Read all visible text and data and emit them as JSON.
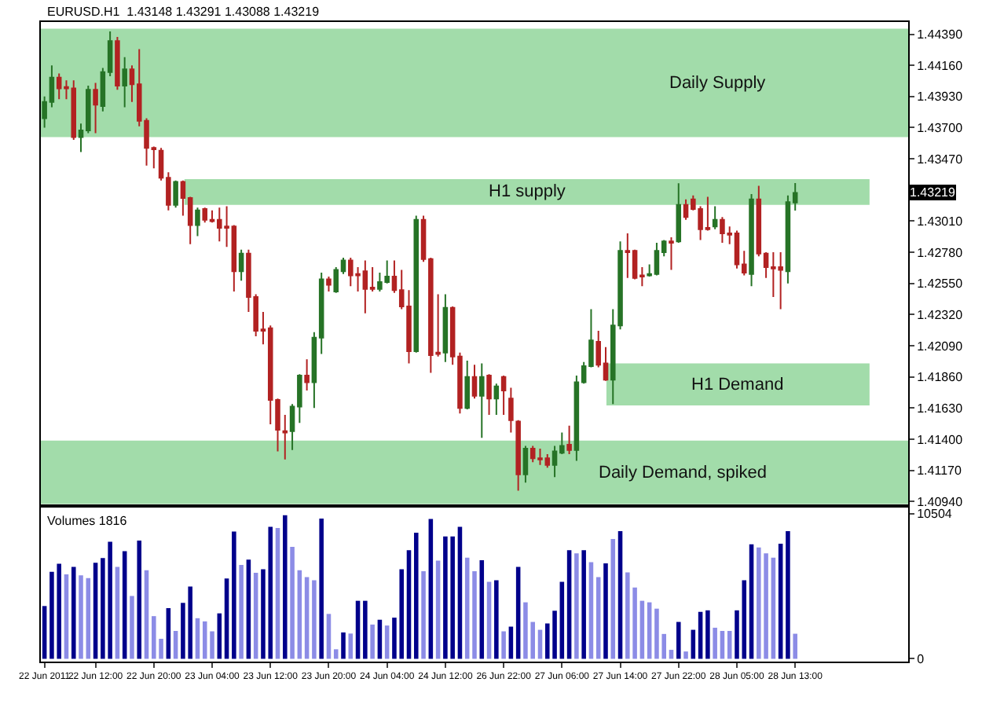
{
  "chart_data": [
    {
      "type": "candlestick",
      "title": "EURUSD.H1  1.43148 1.43291 1.43088 1.43219",
      "categories": [
        null,
        null,
        null,
        null,
        null,
        null,
        null,
        null,
        null,
        null,
        null,
        null,
        null,
        null,
        null,
        null,
        null,
        null,
        null,
        null,
        null,
        null,
        null,
        null,
        null,
        null,
        null,
        null,
        null,
        null,
        null,
        null,
        null,
        null,
        null,
        null,
        null,
        null,
        null,
        null,
        null,
        null,
        null,
        null,
        null,
        null,
        null,
        null,
        null,
        null,
        null,
        null,
        null,
        null,
        null,
        null,
        null,
        null,
        null,
        null,
        null,
        null,
        null,
        null,
        null,
        null,
        null,
        null,
        null,
        null,
        null,
        null,
        null,
        null,
        null,
        null,
        null,
        null,
        null,
        null,
        null,
        null,
        null,
        null,
        null,
        null,
        null,
        null,
        null,
        null,
        null,
        null,
        null,
        null,
        null,
        null,
        null,
        null,
        null,
        null,
        null,
        null,
        null,
        null,
        null,
        null,
        null,
        null,
        null,
        null,
        null,
        null,
        null,
        null,
        null,
        null,
        null,
        null,
        null
      ],
      "ohlc": [
        [
          1.4377,
          1.4393,
          1.437,
          1.4389
        ],
        [
          1.4389,
          1.4416,
          1.4385,
          1.4407
        ],
        [
          1.4407,
          1.441,
          1.4391,
          1.4399
        ],
        [
          1.44,
          1.4405,
          1.4391,
          1.4399
        ],
        [
          1.4399,
          1.4405,
          1.4361,
          1.4363
        ],
        [
          1.4363,
          1.4373,
          1.4352,
          1.4368
        ],
        [
          1.4368,
          1.4401,
          1.4366,
          1.4398
        ],
        [
          1.4398,
          1.4403,
          1.4366,
          1.4387
        ],
        [
          1.4386,
          1.4414,
          1.4382,
          1.4411
        ],
        [
          1.4411,
          1.4441,
          1.4408,
          1.4434
        ],
        [
          1.4434,
          1.4437,
          1.4398,
          1.4401
        ],
        [
          1.4401,
          1.4422,
          1.4385,
          1.4413
        ],
        [
          1.4413,
          1.4416,
          1.4389,
          1.4402
        ],
        [
          1.4402,
          1.4428,
          1.4371,
          1.4375
        ],
        [
          1.4375,
          1.4377,
          1.4342,
          1.4355
        ],
        [
          1.4355,
          1.4356,
          1.434,
          1.4354
        ],
        [
          1.4353,
          1.4355,
          1.4331,
          1.4333
        ],
        [
          1.4333,
          1.4337,
          1.4309,
          1.4313
        ],
        [
          1.4313,
          1.4331,
          1.4311,
          1.433
        ],
        [
          1.433,
          1.4331,
          1.4305,
          1.4318
        ],
        [
          1.4318,
          1.4319,
          1.4284,
          1.4298
        ],
        [
          1.4298,
          1.4311,
          1.429,
          1.4309
        ],
        [
          1.431,
          1.4311,
          1.43,
          1.4302
        ],
        [
          1.4302,
          1.4309,
          1.43,
          1.4301
        ],
        [
          1.4302,
          1.4311,
          1.4286,
          1.4296
        ],
        [
          1.4297,
          1.4312,
          1.4282,
          1.4296
        ],
        [
          1.4297,
          1.4298,
          1.4249,
          1.4264
        ],
        [
          1.4264,
          1.428,
          1.4257,
          1.4277
        ],
        [
          1.4277,
          1.428,
          1.4234,
          1.4245
        ],
        [
          1.4245,
          1.4247,
          1.4216,
          1.422
        ],
        [
          1.4221,
          1.4234,
          1.421,
          1.422
        ],
        [
          1.4222,
          1.4224,
          1.4151,
          1.4169
        ],
        [
          1.4169,
          1.417,
          1.4131,
          1.4147
        ],
        [
          1.4146,
          1.4158,
          1.4125,
          1.4145
        ],
        [
          1.4146,
          1.4166,
          1.4132,
          1.4164
        ],
        [
          1.4164,
          1.4188,
          1.4152,
          1.4187
        ],
        [
          1.4187,
          1.4199,
          1.4176,
          1.4182
        ],
        [
          1.4182,
          1.4219,
          1.4163,
          1.4215
        ],
        [
          1.4215,
          1.4263,
          1.4203,
          1.4258
        ],
        [
          1.4258,
          1.426,
          1.4249,
          1.4254
        ],
        [
          1.4249,
          1.4267,
          1.4248,
          1.4265
        ],
        [
          1.4264,
          1.4274,
          1.4262,
          1.4272
        ],
        [
          1.4272,
          1.4274,
          1.4253,
          1.4261
        ],
        [
          1.4262,
          1.4267,
          1.4249,
          1.4261
        ],
        [
          1.4264,
          1.4272,
          1.4233,
          1.4251
        ],
        [
          1.4252,
          1.4267,
          1.4249,
          1.4251
        ],
        [
          1.4251,
          1.4263,
          1.4249,
          1.4256
        ],
        [
          1.4256,
          1.4272,
          1.4255,
          1.426
        ],
        [
          1.426,
          1.4272,
          1.4248,
          1.425
        ],
        [
          1.425,
          1.4265,
          1.4236,
          1.4238
        ],
        [
          1.4238,
          1.425,
          1.4196,
          1.4205
        ],
        [
          1.4205,
          1.4305,
          1.4204,
          1.4302
        ],
        [
          1.4302,
          1.4305,
          1.4271,
          1.4273
        ],
        [
          1.4273,
          1.4274,
          1.4189,
          1.4202
        ],
        [
          1.4204,
          1.4247,
          1.4201,
          1.4203
        ],
        [
          1.4204,
          1.4247,
          1.4197,
          1.4237
        ],
        [
          1.4237,
          1.4238,
          1.4195,
          1.4201
        ],
        [
          1.4201,
          1.4204,
          1.4159,
          1.4163
        ],
        [
          1.4163,
          1.4198,
          1.4162,
          1.4186
        ],
        [
          1.4186,
          1.4195,
          1.417,
          1.4172
        ],
        [
          1.4172,
          1.4196,
          1.4141,
          1.4186
        ],
        [
          1.4187,
          1.4188,
          1.4158,
          1.417
        ],
        [
          1.417,
          1.4181,
          1.4158,
          1.4179
        ],
        [
          1.4186,
          1.4187,
          1.4158,
          1.4176
        ],
        [
          1.417,
          1.4178,
          1.4145,
          1.4154
        ],
        [
          1.4153,
          1.4154,
          1.4102,
          1.4114
        ],
        [
          1.4114,
          1.4135,
          1.4108,
          1.4133
        ],
        [
          1.4133,
          1.4135,
          1.4123,
          1.4126
        ],
        [
          1.4126,
          1.4133,
          1.4121,
          1.4125
        ],
        [
          1.4126,
          1.4129,
          1.4119,
          1.4121
        ],
        [
          1.4121,
          1.4135,
          1.4112,
          1.4131
        ],
        [
          1.413,
          1.4145,
          1.4129,
          1.4135
        ],
        [
          1.4136,
          1.415,
          1.4129,
          1.4132
        ],
        [
          1.4132,
          1.4187,
          1.4124,
          1.4182
        ],
        [
          1.4182,
          1.4197,
          1.4181,
          1.4194
        ],
        [
          1.4194,
          1.4236,
          1.4193,
          1.4213
        ],
        [
          1.4212,
          1.422,
          1.4193,
          1.4195
        ],
        [
          1.4196,
          1.4208,
          1.4183,
          1.4184
        ],
        [
          1.4184,
          1.4236,
          1.4166,
          1.4224
        ],
        [
          1.4224,
          1.4286,
          1.4221,
          1.4279
        ],
        [
          1.4279,
          1.4292,
          1.4259,
          1.4278
        ],
        [
          1.4279,
          1.428,
          1.4258,
          1.4259
        ],
        [
          1.4261,
          1.4267,
          1.4253,
          1.426
        ],
        [
          1.4261,
          1.4269,
          1.426,
          1.4262
        ],
        [
          1.4262,
          1.4285,
          1.4261,
          1.4279
        ],
        [
          1.4278,
          1.4287,
          1.4275,
          1.4286
        ],
        [
          1.4286,
          1.4289,
          1.4265,
          1.4285
        ],
        [
          1.4286,
          1.4329,
          1.4285,
          1.4313
        ],
        [
          1.4313,
          1.4317,
          1.4302,
          1.4304
        ],
        [
          1.4317,
          1.432,
          1.4309,
          1.431
        ],
        [
          1.431,
          1.4312,
          1.4287,
          1.4295
        ],
        [
          1.4296,
          1.4319,
          1.4294,
          1.4295
        ],
        [
          1.4297,
          1.4312,
          1.4295,
          1.4302
        ],
        [
          1.4302,
          1.4304,
          1.4285,
          1.4292
        ],
        [
          1.4292,
          1.4297,
          1.4284,
          1.4291
        ],
        [
          1.4292,
          1.4294,
          1.4266,
          1.4269
        ],
        [
          1.4269,
          1.4279,
          1.4261,
          1.4263
        ],
        [
          1.4262,
          1.4321,
          1.4253,
          1.4317
        ],
        [
          1.4317,
          1.4327,
          1.4275,
          1.4277
        ],
        [
          1.4277,
          1.4278,
          1.4259,
          1.4267
        ],
        [
          1.4267,
          1.4278,
          1.4245,
          1.4266
        ],
        [
          1.4267,
          1.4278,
          1.4236,
          1.4265
        ],
        [
          1.4264,
          1.432,
          1.4255,
          1.4315
        ],
        [
          1.43148,
          1.43291,
          1.43088,
          1.43219
        ],
        null,
        null,
        null,
        null,
        null,
        null,
        null,
        null,
        null,
        null,
        null,
        null,
        null,
        null,
        null
      ],
      "colors": [
        "#267326",
        "#267326",
        "#b22222",
        "#b22222",
        "#b22222",
        "#267326",
        "#267326",
        "#b22222",
        "#267326",
        "#267326",
        "#b22222",
        "#267326",
        "#b22222",
        "#b22222",
        "#b22222",
        "#b22222",
        "#b22222",
        "#b22222",
        "#267326",
        "#b22222",
        "#b22222",
        "#267326",
        "#b22222",
        "#b22222",
        "#b22222",
        "#b22222",
        "#b22222",
        "#267326",
        "#b22222",
        "#b22222",
        "#b22222",
        "#b22222",
        "#b22222",
        "#b22222",
        "#267326",
        "#267326",
        "#b22222",
        "#267326",
        "#267326",
        "#b22222",
        "#267326",
        "#267326",
        "#b22222",
        "#b22222",
        "#b22222",
        "#b22222",
        "#267326",
        "#267326",
        "#b22222",
        "#b22222",
        "#b22222",
        "#267326",
        "#b22222",
        "#b22222",
        "#b22222",
        "#267326",
        "#b22222",
        "#b22222",
        "#267326",
        "#b22222",
        "#267326",
        "#b22222",
        "#267326",
        "#b22222",
        "#b22222",
        "#b22222",
        "#267326",
        "#b22222",
        "#b22222",
        "#b22222",
        "#267326",
        "#267326",
        "#b22222",
        "#267326",
        "#267326",
        "#267326",
        "#b22222",
        "#b22222",
        "#267326",
        "#267326",
        "#b22222",
        "#b22222",
        "#b22222",
        "#267326",
        "#267326",
        "#267326",
        "#b22222",
        "#267326",
        "#b22222",
        "#b22222",
        "#b22222",
        "#b22222",
        "#267326",
        "#b22222",
        "#b22222",
        "#b22222",
        "#b22222",
        "#267326",
        "#b22222",
        "#b22222",
        "#b22222",
        "#b22222",
        "#267326",
        "#267326",
        null,
        null,
        null,
        null,
        null,
        null,
        null,
        null,
        null,
        null,
        null,
        null,
        null,
        null,
        null
      ],
      "ylim": [
        1.4092,
        1.4448
      ],
      "yticks": [
        {
          "value": 1.4094,
          "label": "1.40940"
        },
        {
          "value": 1.4117,
          "label": "1.41170"
        },
        {
          "value": 1.414,
          "label": "1.41400"
        },
        {
          "value": 1.4163,
          "label": "1.41630"
        },
        {
          "value": 1.4186,
          "label": "1.41860"
        },
        {
          "value": 1.4209,
          "label": "1.42090"
        },
        {
          "value": 1.4232,
          "label": "1.42320"
        },
        {
          "value": 1.4255,
          "label": "1.42550"
        },
        {
          "value": 1.4278,
          "label": "1.42780"
        },
        {
          "value": 1.4301,
          "label": "1.43010"
        },
        {
          "value": 1.4324,
          "label": null
        },
        {
          "value": 1.4347,
          "label": "1.43470"
        },
        {
          "value": 1.437,
          "label": "1.43700"
        },
        {
          "value": 1.4393,
          "label": "1.43930"
        },
        {
          "value": 1.4416,
          "label": "1.44160"
        },
        {
          "value": 1.4439,
          "label": "1.44390"
        }
      ],
      "tick_labels": "y",
      "bands": [
        {
          "axis": "y",
          "from": 1.4363,
          "to": 1.4443,
          "label": "Daily Supply",
          "color": "#a2dcaa"
        },
        {
          "axis": "y",
          "from": 1.4313,
          "to": 1.4332,
          "label": "H1 supply",
          "color": "#a2dcaa"
        },
        {
          "axis": "y",
          "from": 1.4165,
          "to": 1.4196,
          "label": "H1 Demand",
          "color": "#a2dcaa"
        },
        {
          "axis": "y",
          "from": 1.4092,
          "to": 1.4139,
          "label": "Daily Demand, spiked",
          "color": "#a2dcaa"
        }
      ],
      "annotations": [
        {
          "text": "1.43219",
          "y": 1.43219
        }
      ]
    },
    {
      "type": "bar",
      "title": "Volumes 1816",
      "categories": [
        "22 Jun 2011",
        null,
        null,
        null,
        null,
        null,
        null,
        "22 Jun 12:00",
        null,
        null,
        null,
        null,
        null,
        null,
        null,
        "22 Jun 20:00",
        null,
        null,
        null,
        null,
        null,
        null,
        null,
        "23 Jun 04:00",
        null,
        null,
        null,
        null,
        null,
        null,
        null,
        "23 Jun 12:00",
        null,
        null,
        null,
        null,
        null,
        null,
        null,
        "23 Jun 20:00",
        null,
        null,
        null,
        null,
        null,
        null,
        null,
        "24 Jun 04:00",
        null,
        null,
        null,
        null,
        null,
        null,
        null,
        "24 Jun 12:00",
        null,
        null,
        null,
        null,
        null,
        null,
        null,
        "26 Jun 22:00",
        null,
        null,
        null,
        null,
        null,
        null,
        null,
        "27 Jun 06:00",
        null,
        null,
        null,
        null,
        null,
        null,
        null,
        "27 Jun 14:00",
        null,
        null,
        null,
        null,
        null,
        null,
        null,
        "27 Jun 22:00",
        null,
        null,
        null,
        null,
        null,
        null,
        null,
        "28 Jun 05:00",
        null,
        null,
        null,
        null,
        null,
        null,
        null,
        "28 Jun 13:00",
        null,
        null,
        null,
        null,
        null,
        null,
        null,
        null,
        null,
        null,
        null,
        null,
        null,
        null,
        null
      ],
      "values": [
        3820,
        6300,
        6880,
        6110,
        6650,
        6040,
        5840,
        6950,
        7300,
        8480,
        6650,
        7790,
        4550,
        8560,
        6420,
        3090,
        1450,
        3670,
        2020,
        4050,
        5230,
        2940,
        2710,
        1990,
        3290,
        5810,
        9210,
        6800,
        7180,
        6230,
        6490,
        9550,
        9470,
        10390,
        8100,
        6420,
        5920,
        5690,
        10160,
        3250,
        690,
        1910,
        1830,
        4200,
        4200,
        2480,
        2830,
        2410,
        2980,
        6490,
        7870,
        9130,
        6340,
        10120,
        7110,
        8860,
        8860,
        9550,
        7330,
        6340,
        7140,
        5580,
        5690,
        1990,
        2330,
        6650,
        4090,
        2670,
        2100,
        2560,
        3480,
        5580,
        7870,
        7640,
        7870,
        6990,
        5920,
        6910,
        8670,
        9240,
        6260,
        5160,
        4200,
        4090,
        3630,
        1800,
        650,
        2670,
        530,
        2100,
        3400,
        3510,
        2250,
        2020,
        2020,
        3510,
        5690,
        8290,
        8060,
        7640,
        7330,
        8330,
        9240,
        1816,
        null,
        null,
        null,
        null,
        null,
        null,
        null,
        null,
        null,
        null,
        null,
        null,
        null,
        null,
        null
      ],
      "colors": [
        "#00008b",
        "#00008b",
        "#00008b",
        "#8c8ce6",
        "#00008b",
        "#8c8ce6",
        "#8c8ce6",
        "#00008b",
        "#00008b",
        "#00008b",
        "#8c8ce6",
        "#00008b",
        "#8c8ce6",
        "#00008b",
        "#8c8ce6",
        "#8c8ce6",
        "#8c8ce6",
        "#00008b",
        "#8c8ce6",
        "#00008b",
        "#00008b",
        "#8c8ce6",
        "#8c8ce6",
        "#8c8ce6",
        "#00008b",
        "#00008b",
        "#00008b",
        "#8c8ce6",
        "#00008b",
        "#8c8ce6",
        "#00008b",
        "#00008b",
        "#8c8ce6",
        "#00008b",
        "#8c8ce6",
        "#8c8ce6",
        "#8c8ce6",
        "#8c8ce6",
        "#00008b",
        "#8c8ce6",
        "#8c8ce6",
        "#00008b",
        "#8c8ce6",
        "#00008b",
        "#00008b",
        "#8c8ce6",
        "#00008b",
        "#8c8ce6",
        "#00008b",
        "#00008b",
        "#00008b",
        "#00008b",
        "#8c8ce6",
        "#00008b",
        "#8c8ce6",
        "#00008b",
        "#00008b",
        "#00008b",
        "#8c8ce6",
        "#8c8ce6",
        "#00008b",
        "#8c8ce6",
        "#00008b",
        "#8c8ce6",
        "#00008b",
        "#00008b",
        "#8c8ce6",
        "#8c8ce6",
        "#8c8ce6",
        "#00008b",
        "#00008b",
        "#00008b",
        "#00008b",
        "#8c8ce6",
        "#00008b",
        "#8c8ce6",
        "#8c8ce6",
        "#00008b",
        "#8c8ce6",
        "#00008b",
        "#8c8ce6",
        "#8c8ce6",
        "#8c8ce6",
        "#8c8ce6",
        "#8c8ce6",
        "#8c8ce6",
        "#8c8ce6",
        "#00008b",
        "#8c8ce6",
        "#00008b",
        "#00008b",
        "#00008b",
        "#8c8ce6",
        "#8c8ce6",
        "#8c8ce6",
        "#00008b",
        "#00008b",
        "#00008b",
        "#8c8ce6",
        "#8c8ce6",
        "#8c8ce6",
        "#00008b",
        "#00008b",
        "#8c8ce6",
        null,
        null,
        null,
        null,
        null,
        null,
        null,
        null,
        null,
        null,
        null,
        null,
        null,
        null,
        null
      ],
      "ylim": [
        -200,
        10960
      ],
      "yticks": [
        0,
        10504
      ]
    }
  ]
}
